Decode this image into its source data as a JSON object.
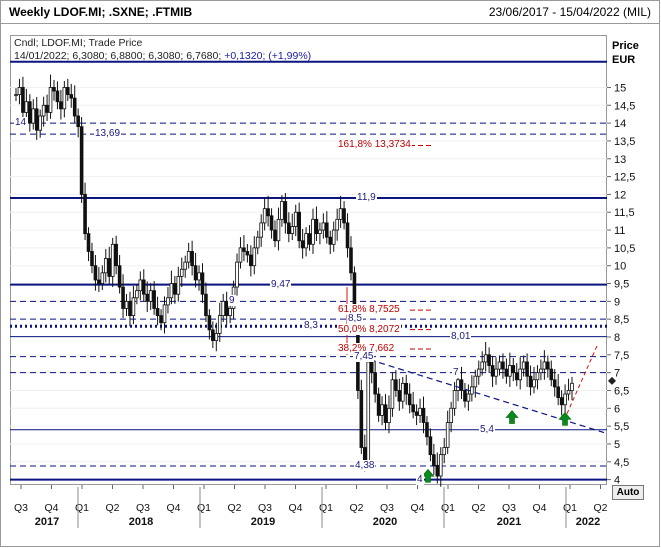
{
  "header": {
    "title": "Weekly LDOF.MI; .SXNE; .FTMIB",
    "range": "23/06/2017 - 15/04/2022 (MIL)"
  },
  "legend": {
    "line1": "Cndl; LDOF.MI; Trade Price",
    "line2_prefix": "14/01/2022; 6,3080; 6,8800; 6,3080; 6,7680;",
    "line2_change": " +0,1320; (+1,99%)"
  },
  "axis": {
    "title": "Price",
    "unit": "EUR",
    "auto_label": "Auto"
  },
  "annotations": [
    {
      "id": "lbl-14",
      "text": "14",
      "color": "blue"
    },
    {
      "id": "lbl-1369",
      "text": "13,69",
      "color": "blue"
    },
    {
      "id": "lbl-fib1618",
      "text": "161,8% 13,3734",
      "color": "red"
    },
    {
      "id": "lbl-119",
      "text": "11,9",
      "color": "blue"
    },
    {
      "id": "lbl-947",
      "text": "9,47",
      "color": "blue"
    },
    {
      "id": "lbl-9",
      "text": "9",
      "color": "blue"
    },
    {
      "id": "lbl-fib618",
      "text": "61,8% 8,7525",
      "color": "red"
    },
    {
      "id": "lbl-85",
      "text": "8,5",
      "color": "blue"
    },
    {
      "id": "lbl-83",
      "text": "8,3",
      "color": "blue"
    },
    {
      "id": "lbl-fib50",
      "text": "50,0% 8,2072",
      "color": "red"
    },
    {
      "id": "lbl-801",
      "text": "8,01",
      "color": "blue"
    },
    {
      "id": "lbl-fib382",
      "text": "38,2% 7,662",
      "color": "red"
    },
    {
      "id": "lbl-745",
      "text": "7,45",
      "color": "blue"
    },
    {
      "id": "lbl-7",
      "text": "7",
      "color": "blue"
    },
    {
      "id": "lbl-54",
      "text": "5,4",
      "color": "blue"
    },
    {
      "id": "lbl-438",
      "text": "4,38",
      "color": "blue"
    },
    {
      "id": "lbl-4",
      "text": "4",
      "color": "blue"
    }
  ],
  "chart_data": {
    "type": "candlestick",
    "title": "Weekly LDOF.MI; .SXNE; .FTMIB",
    "ylabel": "Price EUR",
    "ylim": [
      3.8,
      15.95
    ],
    "y_ticks": [
      4,
      4.5,
      5,
      5.5,
      6,
      6.5,
      7,
      7.5,
      8,
      8.5,
      9,
      9.5,
      10,
      10.5,
      11,
      11.5,
      12,
      12.5,
      13,
      13.5,
      14,
      14.5,
      15
    ],
    "y_tick_labels": [
      "4",
      "4,5",
      "5",
      "5,5",
      "6",
      "6,5",
      "7",
      "7,5",
      "8",
      "8,5",
      "9",
      "9,5",
      "10",
      "10,5",
      "11",
      "11,5",
      "12",
      "12,5",
      "13",
      "13,5",
      "14",
      "14,5",
      "15"
    ],
    "x_quarters": [
      "Q3",
      "Q4",
      "Q1",
      "Q2",
      "Q3",
      "Q4",
      "Q1",
      "Q2",
      "Q3",
      "Q4",
      "Q1",
      "Q2",
      "Q3",
      "Q4",
      "Q1",
      "Q2",
      "Q3",
      "Q4",
      "Q1",
      "Q2"
    ],
    "x_years": [
      "2017",
      "2018",
      "2019",
      "2020",
      "2021",
      "2022"
    ],
    "last_close": 6.768,
    "horizontal_levels": [
      {
        "value": 13.69,
        "style": "dashed"
      },
      {
        "value": 14.0,
        "style": "dashed"
      },
      {
        "value": 11.9,
        "style": "solid-thick"
      },
      {
        "value": 9.47,
        "style": "solid-thick"
      },
      {
        "value": 9.0,
        "style": "dashed"
      },
      {
        "value": 8.5,
        "style": "dashed"
      },
      {
        "value": 8.3,
        "style": "dotted-thick"
      },
      {
        "value": 8.01,
        "style": "solid-thin"
      },
      {
        "value": 7.45,
        "style": "dashed"
      },
      {
        "value": 7.0,
        "style": "dashed"
      },
      {
        "value": 5.4,
        "style": "solid-thin"
      },
      {
        "value": 4.38,
        "style": "dashed"
      },
      {
        "value": 4.0,
        "style": "solid-thick"
      },
      {
        "value": 15.72,
        "style": "solid-thick"
      }
    ],
    "fibonacci": [
      {
        "label": "161,8%",
        "value": 13.3734
      },
      {
        "label": "61,8%",
        "value": 8.7525
      },
      {
        "label": "50,0%",
        "value": 8.2072
      },
      {
        "label": "38,2%",
        "value": 7.662
      }
    ],
    "price_series": [
      14.8,
      15.0,
      14.3,
      14.6,
      14.0,
      14.4,
      13.8,
      14.2,
      14.5,
      14.3,
      15.0,
      14.9,
      14.6,
      14.4,
      15.0,
      14.8,
      14.7,
      14.2,
      13.9,
      12.0,
      10.9,
      10.4,
      10.0,
      9.6,
      9.5,
      9.8,
      10.2,
      9.7,
      10.6,
      10.0,
      9.4,
      8.8,
      9.0,
      8.6,
      9.1,
      9.3,
      9.6,
      9.2,
      9.0,
      9.3,
      8.8,
      8.6,
      8.4,
      8.9,
      9.1,
      9.5,
      9.2,
      9.7,
      9.9,
      10.1,
      10.4,
      10.0,
      9.6,
      9.8,
      9.2,
      8.6,
      8.2,
      7.9,
      8.1,
      8.6,
      9.0,
      8.6,
      8.8,
      9.4,
      10.1,
      10.5,
      10.4,
      10.3,
      10.0,
      10.5,
      10.8,
      11.2,
      11.6,
      11.4,
      11.0,
      10.7,
      11.3,
      11.8,
      11.2,
      10.9,
      11.1,
      11.5,
      10.7,
      10.5,
      10.9,
      10.6,
      11.3,
      10.9,
      11.0,
      11.2,
      10.8,
      10.6,
      11.0,
      11.3,
      11.6,
      11.2,
      10.5,
      9.8,
      8.5,
      6.5,
      4.9,
      4.5,
      7.3,
      7.0,
      6.4,
      5.8,
      6.1,
      5.6,
      6.0,
      6.8,
      6.5,
      6.2,
      6.7,
      6.4,
      6.1,
      5.9,
      5.8,
      6.0,
      5.6,
      5.2,
      4.7,
      4.4,
      4.1,
      4.7,
      4.9,
      5.6,
      6.0,
      6.5,
      6.8,
      6.5,
      6.2,
      6.4,
      6.6,
      6.9,
      7.1,
      7.3,
      7.5,
      7.2,
      6.9,
      7.1,
      7.3,
      7.1,
      6.9,
      7.2,
      7.0,
      6.8,
      7.1,
      7.3,
      6.9,
      6.6,
      6.8,
      7.0,
      7.1,
      7.3,
      7.1,
      6.8,
      6.6,
      6.3,
      6.1,
      6.4,
      6.5,
      6.7
    ]
  }
}
